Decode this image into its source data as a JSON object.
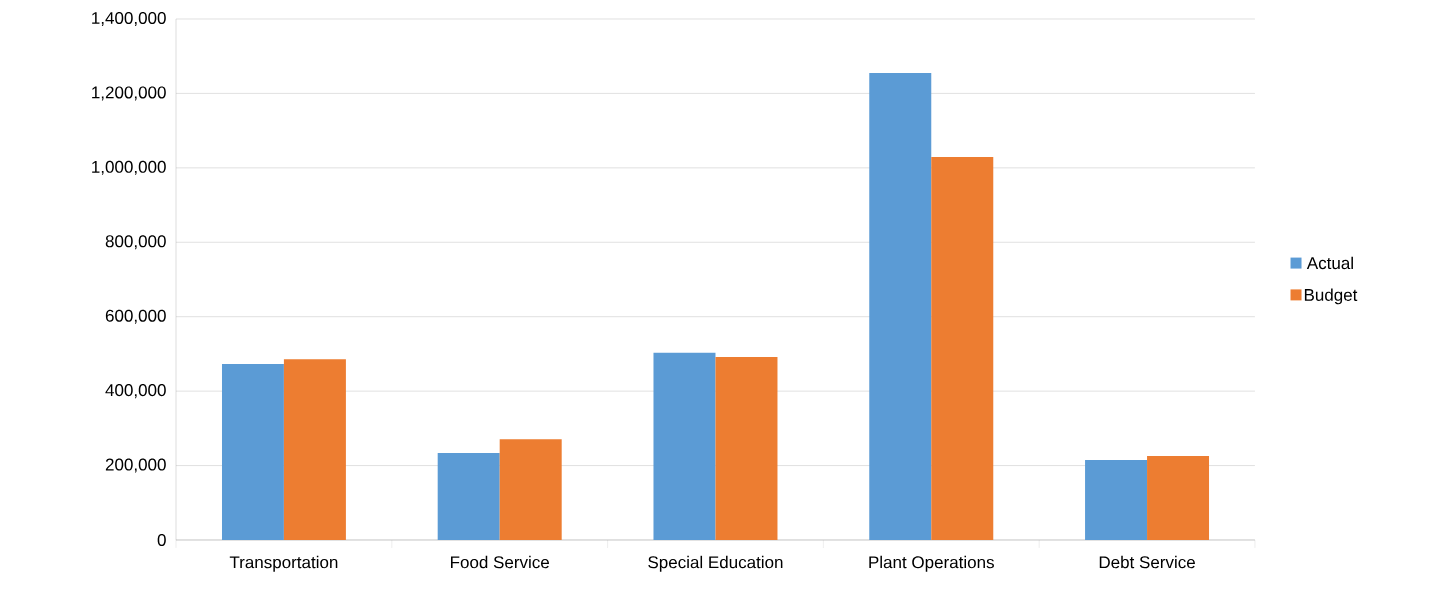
{
  "chart_data": {
    "type": "bar",
    "categories": [
      "Transportation",
      "Food Service",
      "Special Education",
      "Plant Operations",
      "Debt Service"
    ],
    "series": [
      {
        "name": "Actual",
        "color": "#5b9bd5",
        "values": [
          473000,
          234000,
          503000,
          1255000,
          215000
        ]
      },
      {
        "name": "Budget",
        "color": "#ed7d31",
        "values": [
          486000,
          271000,
          492000,
          1029000,
          226000
        ]
      }
    ],
    "ylim": [
      0,
      1400000
    ],
    "yticks": [
      0,
      {
        "value": 200000,
        "label": "200,000"
      },
      {
        "value": 400000,
        "label": "400,000"
      },
      {
        "value": 600000,
        "label": "600,000"
      },
      {
        "value": 800000,
        "label": "800,000"
      },
      {
        "value": 1000000,
        "label": "1,000,000"
      },
      {
        "value": 1200000,
        "label": "1,200,000"
      },
      {
        "value": 1400000,
        "label": "1,400,000"
      }
    ],
    "grid": "y",
    "legend": "right"
  }
}
